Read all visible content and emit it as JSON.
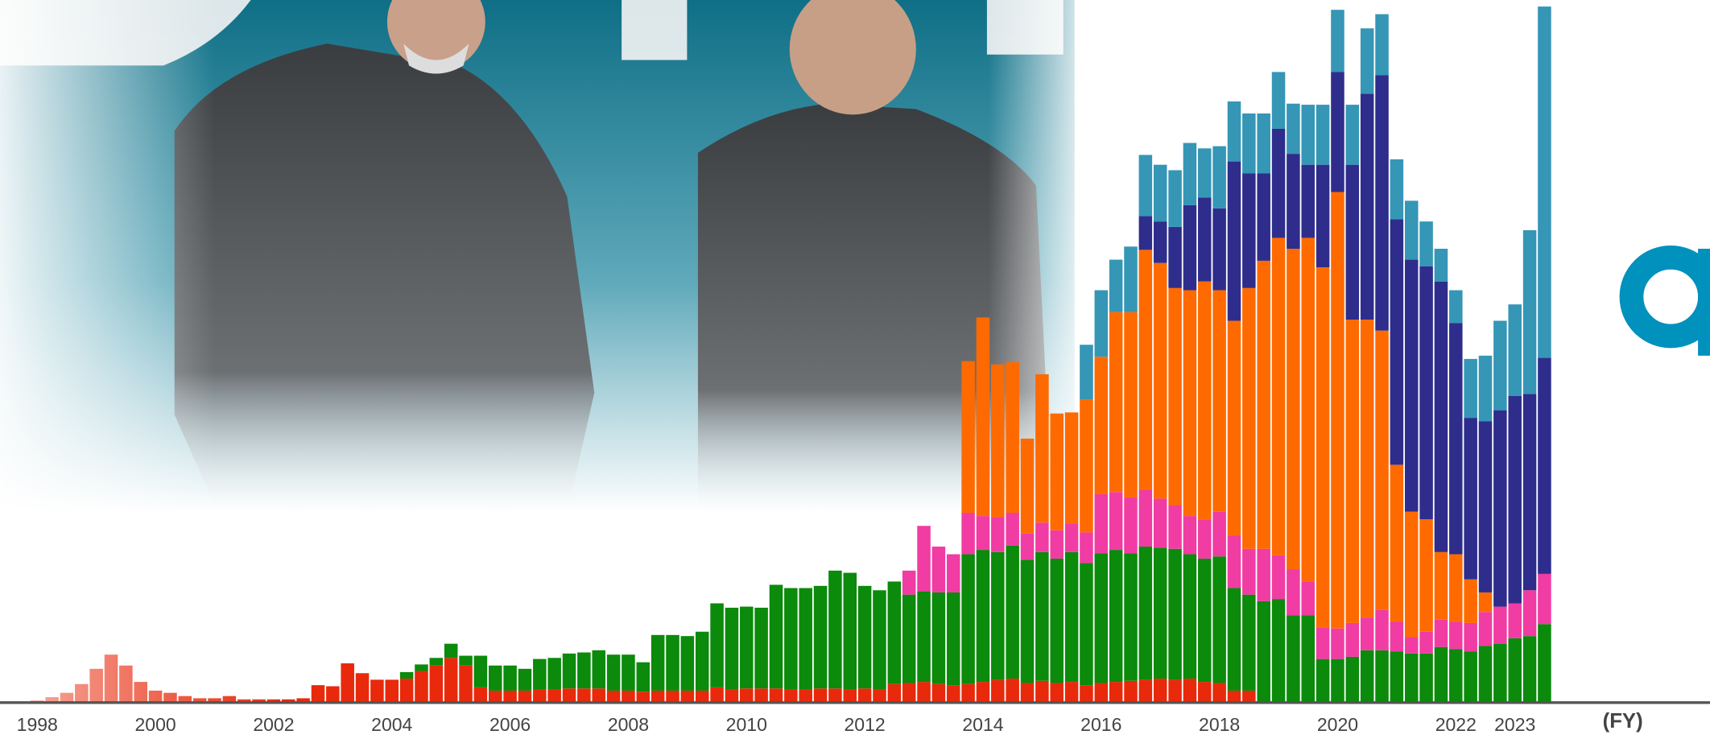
{
  "chart_data": {
    "type": "stacked_bar",
    "x": [
      1998,
      1998.25,
      1998.5,
      1998.75,
      1999,
      1999.25,
      1999.5,
      1999.75,
      2000,
      2000.25,
      2000.5,
      2000.75,
      2001,
      2001.25,
      2001.5,
      2001.75,
      2002,
      2002.25,
      2002.5,
      2002.75,
      2003,
      2003.25,
      2003.5,
      2003.75,
      2004,
      2004.25,
      2004.5,
      2004.75,
      2005,
      2005.25,
      2005.5,
      2005.75,
      2006,
      2006.25,
      2006.5,
      2006.75,
      2007,
      2007.25,
      2007.5,
      2007.75,
      2008,
      2008.25,
      2008.5,
      2008.75,
      2009,
      2009.25,
      2009.5,
      2009.75,
      2010,
      2010.25,
      2010.5,
      2010.75,
      2011,
      2011.25,
      2011.5,
      2011.75,
      2012,
      2012.25,
      2012.5,
      2012.75,
      2013,
      2013.25,
      2013.5,
      2013.75,
      2014,
      2014.25,
      2014.5,
      2014.75,
      2015,
      2015.25,
      2015.5,
      2015.75,
      2016,
      2016.25,
      2016.5,
      2016.75,
      2017,
      2017.25,
      2017.5,
      2017.75,
      2018,
      2018.25,
      2018.5,
      2018.75,
      2019,
      2019.25,
      2019.5,
      2019.75,
      2020,
      2020.25,
      2020.5,
      2020.75,
      2021,
      2021.25,
      2021.5,
      2021.75,
      2022,
      2022.25,
      2022.5,
      2022.75,
      2023,
      2023.25,
      2023.5
    ],
    "series": [
      {
        "color": "#e8290b",
        "values": [
          1,
          4,
          8,
          16,
          30,
          43,
          33,
          18,
          10,
          8,
          5,
          3,
          3,
          5,
          2,
          2,
          2,
          2,
          3,
          15,
          14,
          35,
          26,
          20,
          20,
          21,
          28,
          33,
          40,
          33,
          13,
          10,
          10,
          10,
          11,
          11,
          12,
          12,
          12,
          10,
          10,
          9,
          10,
          10,
          10,
          10,
          13,
          11,
          12,
          12,
          12,
          11,
          11,
          12,
          12,
          11,
          12,
          11,
          16,
          17,
          18,
          16,
          15,
          16,
          18,
          20,
          21,
          17,
          19,
          17,
          18,
          15,
          17,
          18,
          19,
          20,
          21,
          20,
          21,
          18,
          17,
          10,
          10,
          0,
          0,
          0,
          0,
          0,
          0,
          0,
          0,
          0,
          0,
          0,
          0,
          0,
          0,
          0,
          0,
          0,
          0,
          0,
          0
        ]
      },
      {
        "color": "#0b8a0b",
        "values": [
          0,
          0,
          0,
          0,
          0,
          0,
          0,
          0,
          0,
          0,
          0,
          0,
          0,
          0,
          0,
          0,
          0,
          0,
          0,
          0,
          0,
          0,
          0,
          0,
          0,
          6,
          6,
          7,
          13,
          9,
          29,
          23,
          23,
          20,
          28,
          29,
          32,
          33,
          35,
          33,
          33,
          27,
          51,
          51,
          50,
          54,
          77,
          75,
          75,
          74,
          95,
          93,
          93,
          94,
          108,
          107,
          94,
          91,
          94,
          81,
          83,
          84,
          85,
          119,
          121,
          117,
          122,
          113,
          118,
          114,
          119,
          112,
          119,
          121,
          117,
          122,
          120,
          120,
          114,
          113,
          116,
          94,
          88,
          92,
          94,
          79,
          79,
          39,
          39,
          41,
          47,
          47,
          46,
          44,
          44,
          50,
          48,
          46,
          51,
          53,
          58,
          60,
          71
        ]
      },
      {
        "color": "#f03ca3",
        "values": [
          0,
          0,
          0,
          0,
          0,
          0,
          0,
          0,
          0,
          0,
          0,
          0,
          0,
          0,
          0,
          0,
          0,
          0,
          0,
          0,
          0,
          0,
          0,
          0,
          0,
          0,
          0,
          0,
          0,
          0,
          0,
          0,
          0,
          0,
          0,
          0,
          0,
          0,
          0,
          0,
          0,
          0,
          0,
          0,
          0,
          0,
          0,
          0,
          0,
          0,
          0,
          0,
          0,
          0,
          0,
          0,
          0,
          0,
          0,
          22,
          60,
          42,
          35,
          38,
          31,
          32,
          30,
          24,
          27,
          26,
          26,
          28,
          54,
          53,
          51,
          52,
          45,
          40,
          35,
          36,
          41,
          48,
          42,
          48,
          40,
          42,
          31,
          29,
          28,
          31,
          30,
          37,
          27,
          15,
          20,
          25,
          25,
          26,
          31,
          34,
          32,
          42,
          46
        ]
      },
      {
        "color": "#ff6a00",
        "values": [
          0,
          0,
          0,
          0,
          0,
          0,
          0,
          0,
          0,
          0,
          0,
          0,
          0,
          0,
          0,
          0,
          0,
          0,
          0,
          0,
          0,
          0,
          0,
          0,
          0,
          0,
          0,
          0,
          0,
          0,
          0,
          0,
          0,
          0,
          0,
          0,
          0,
          0,
          0,
          0,
          0,
          0,
          0,
          0,
          0,
          0,
          0,
          0,
          0,
          0,
          0,
          0,
          0,
          0,
          0,
          0,
          0,
          0,
          0,
          0,
          0,
          0,
          0,
          139,
          182,
          140,
          138,
          87,
          136,
          107,
          102,
          122,
          126,
          165,
          170,
          220,
          216,
          199,
          207,
          218,
          203,
          197,
          239,
          264,
          291,
          294,
          315,
          330,
          400,
          278,
          273,
          256,
          144,
          115,
          103,
          62,
          62,
          40,
          18,
          0,
          0,
          0,
          0
        ]
      },
      {
        "color": "#2e2d8c",
        "values": [
          0,
          0,
          0,
          0,
          0,
          0,
          0,
          0,
          0,
          0,
          0,
          0,
          0,
          0,
          0,
          0,
          0,
          0,
          0,
          0,
          0,
          0,
          0,
          0,
          0,
          0,
          0,
          0,
          0,
          0,
          0,
          0,
          0,
          0,
          0,
          0,
          0,
          0,
          0,
          0,
          0,
          0,
          0,
          0,
          0,
          0,
          0,
          0,
          0,
          0,
          0,
          0,
          0,
          0,
          0,
          0,
          0,
          0,
          0,
          0,
          0,
          0,
          0,
          0,
          0,
          0,
          0,
          0,
          0,
          0,
          0,
          0,
          0,
          0,
          0,
          31,
          38,
          56,
          78,
          77,
          75,
          146,
          105,
          80,
          100,
          87,
          67,
          94,
          110,
          142,
          207,
          234,
          225,
          231,
          232,
          248,
          212,
          148,
          157,
          180,
          190,
          180,
          198
        ]
      },
      {
        "color": "#3596b6",
        "values": [
          0,
          0,
          0,
          0,
          0,
          0,
          0,
          0,
          0,
          0,
          0,
          0,
          0,
          0,
          0,
          0,
          0,
          0,
          0,
          0,
          0,
          0,
          0,
          0,
          0,
          0,
          0,
          0,
          0,
          0,
          0,
          0,
          0,
          0,
          0,
          0,
          0,
          0,
          0,
          0,
          0,
          0,
          0,
          0,
          0,
          0,
          0,
          0,
          0,
          0,
          0,
          0,
          0,
          0,
          0,
          0,
          0,
          0,
          0,
          0,
          0,
          0,
          0,
          0,
          0,
          0,
          0,
          0,
          0,
          0,
          0,
          50,
          61,
          48,
          60,
          56,
          52,
          52,
          57,
          45,
          57,
          55,
          55,
          55,
          52,
          46,
          55,
          55,
          57,
          55,
          60,
          56,
          55,
          54,
          41,
          30,
          30,
          54,
          60,
          82,
          84,
          150,
          322
        ]
      }
    ],
    "xlim": [
      1997.37,
      2026.3
    ],
    "xticks": [
      1998,
      2000,
      2002,
      2004,
      2006,
      2008,
      2010,
      2012,
      2014,
      2016,
      2018,
      2020,
      2022,
      2023
    ],
    "ylim": [
      0,
      640
    ],
    "x_label": "(FY)"
  }
}
